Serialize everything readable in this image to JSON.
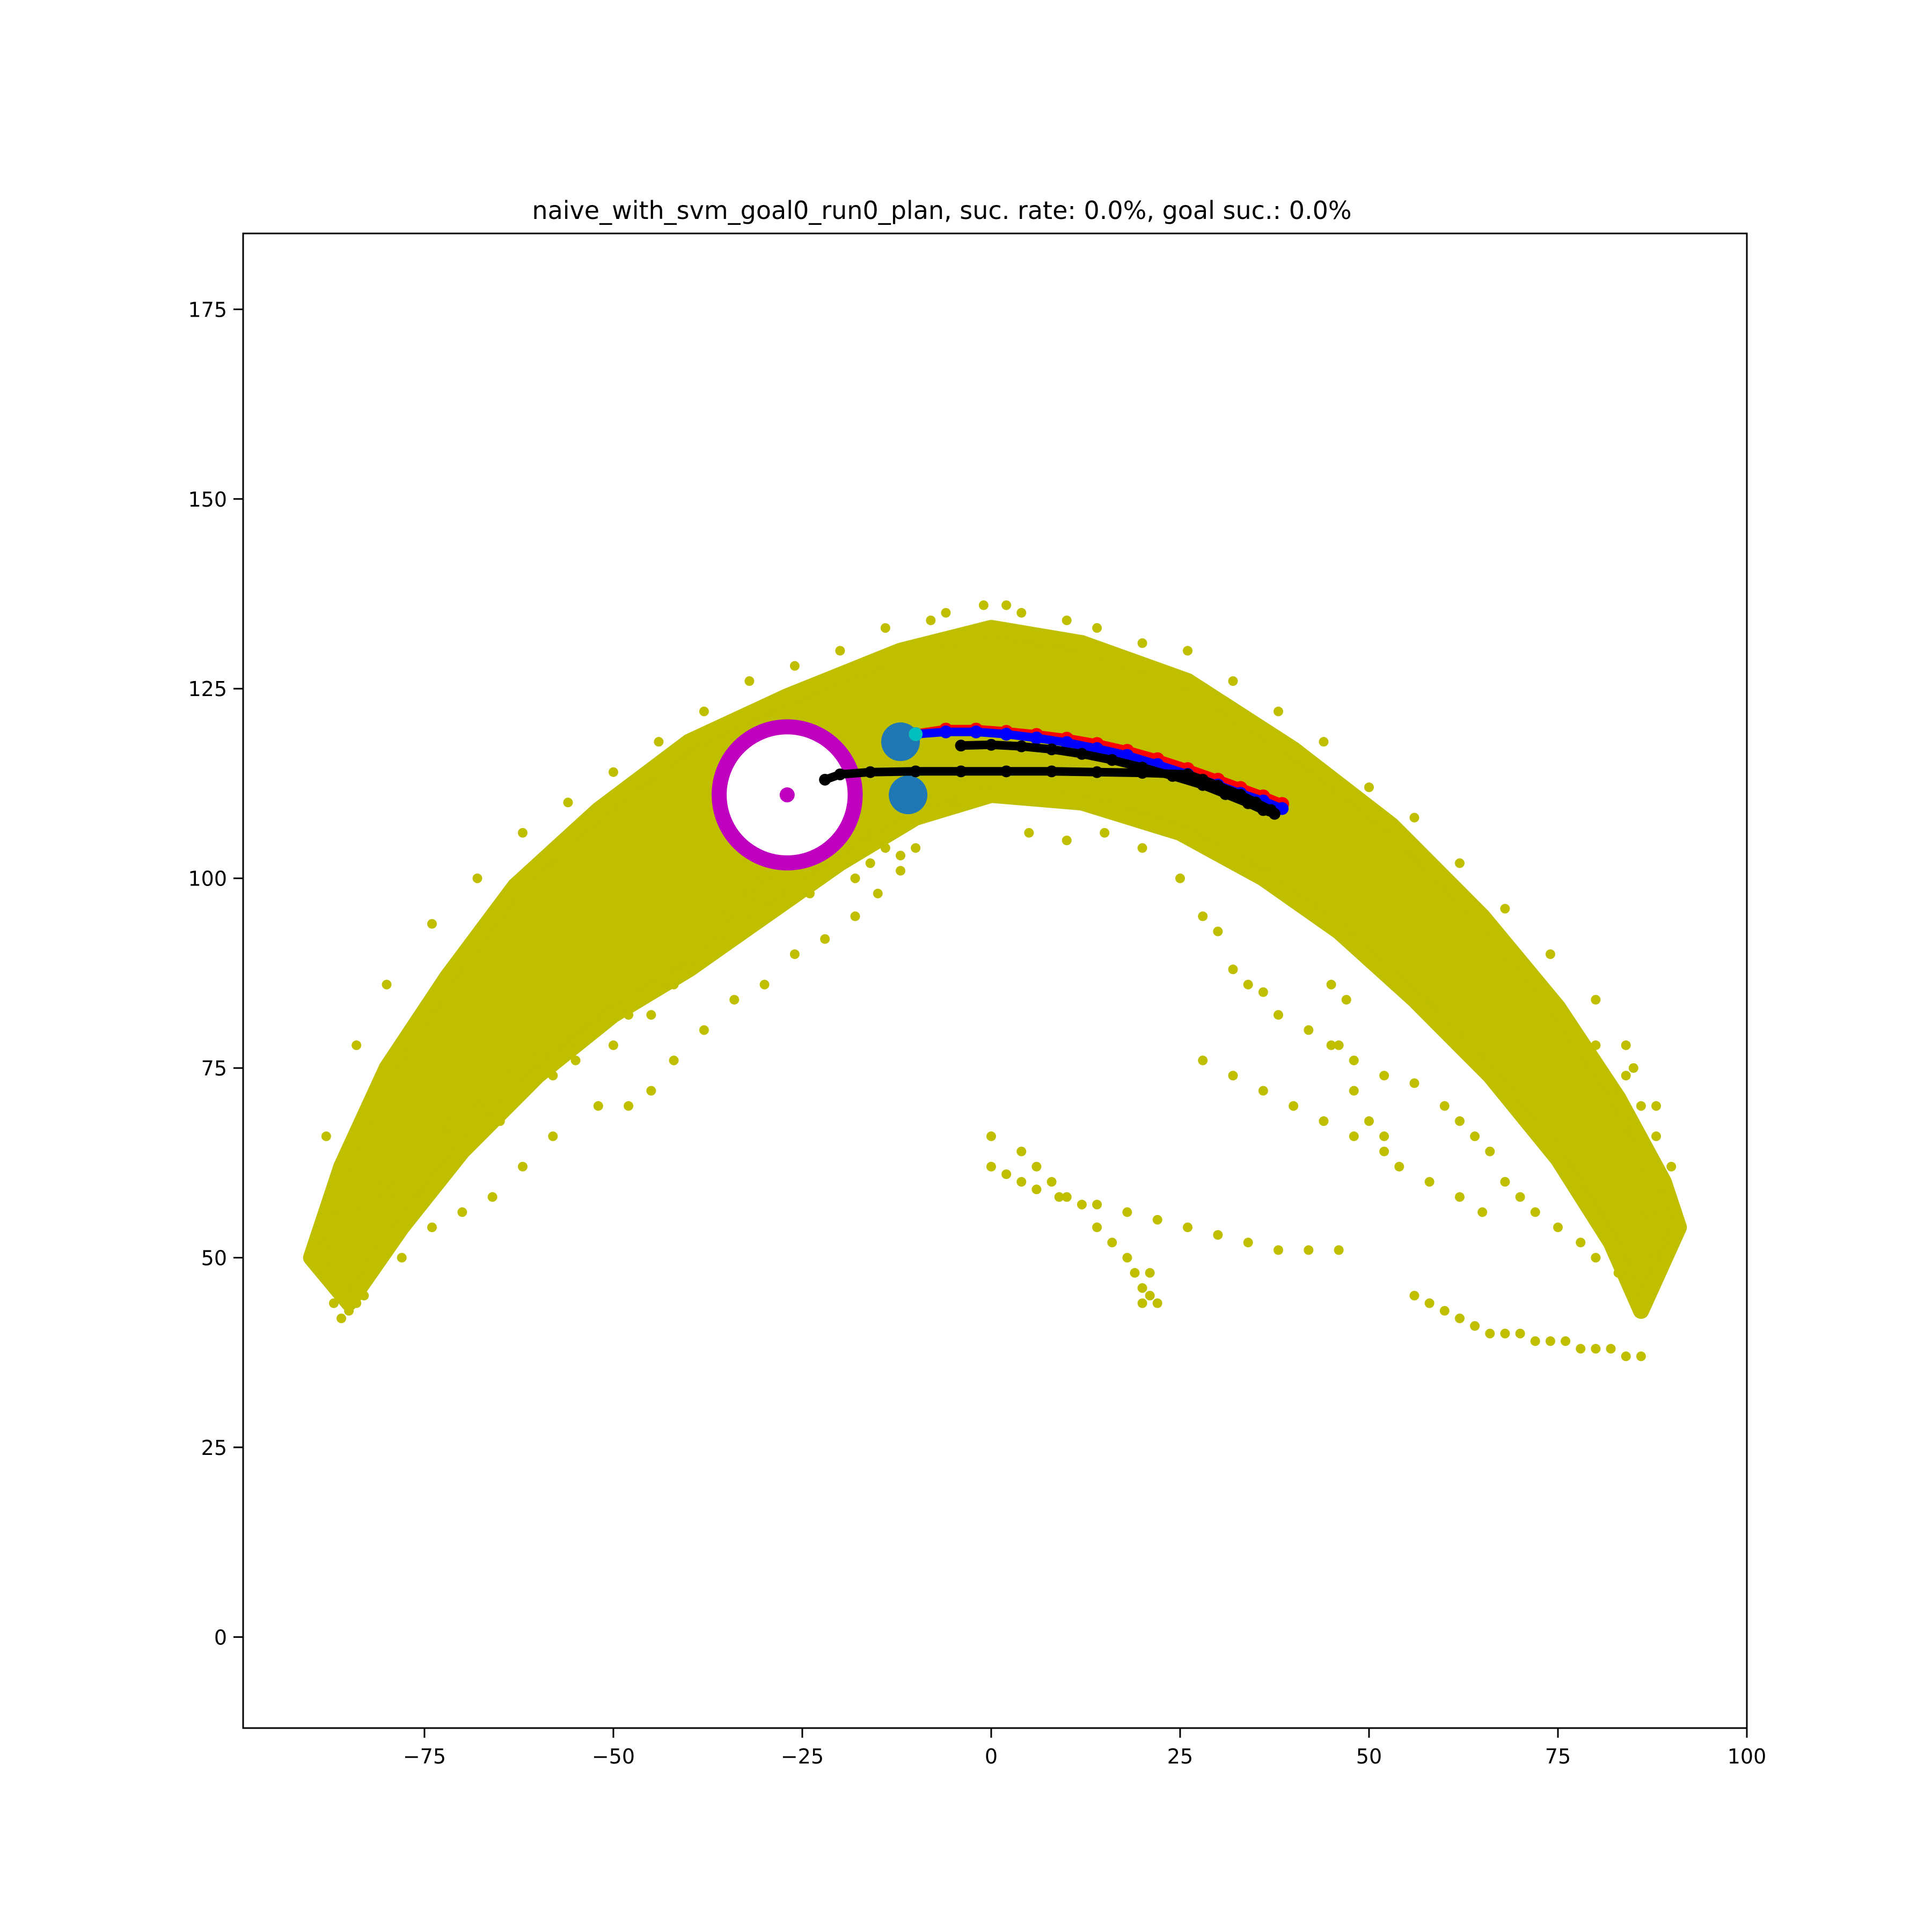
{
  "chart_data": {
    "type": "scatter",
    "title": "naive_with_svm_goal0_run0_plan, suc. rate: 0.0%, goal suc.: 0.0%",
    "xlabel": "",
    "ylabel": "",
    "xlim": [
      -99,
      100
    ],
    "ylim": [
      -12,
      185
    ],
    "xticks": [
      -75,
      -50,
      -25,
      0,
      25,
      50,
      75,
      100
    ],
    "yticks": [
      0,
      25,
      50,
      75,
      100,
      125,
      150,
      175
    ],
    "grid": false,
    "colors": {
      "cloud": "#bfbf00",
      "goal_ring": "#bf00bf",
      "goal_center": "#bf00bf",
      "marker": "#1f77b4",
      "red_path": "#ff0000",
      "blue_path": "#0000ff",
      "black_path": "#000000",
      "cyan_start": "#00bfbf"
    },
    "reachable_band": {
      "outer_edge": [
        [
          -90,
          50
        ],
        [
          -86,
          62
        ],
        [
          -80,
          75
        ],
        [
          -72,
          87
        ],
        [
          -63,
          99
        ],
        [
          -52,
          109
        ],
        [
          -40,
          118
        ],
        [
          -27,
          124
        ],
        [
          -12,
          130
        ],
        [
          0,
          133
        ],
        [
          12,
          131
        ],
        [
          26,
          126
        ],
        [
          40,
          117
        ],
        [
          53,
          107
        ],
        [
          65,
          95
        ],
        [
          75,
          83
        ],
        [
          83,
          71
        ],
        [
          89,
          60
        ],
        [
          91,
          54
        ]
      ],
      "inner_edge": [
        [
          86,
          43
        ],
        [
          82,
          52
        ],
        [
          75,
          63
        ],
        [
          66,
          74
        ],
        [
          56,
          84
        ],
        [
          46,
          93
        ],
        [
          36,
          100
        ],
        [
          25,
          106
        ],
        [
          12,
          110
        ],
        [
          0,
          111
        ],
        [
          -10,
          108
        ],
        [
          -20,
          102
        ],
        [
          -30,
          95
        ],
        [
          -40,
          88
        ],
        [
          -50,
          82
        ],
        [
          -60,
          74
        ],
        [
          -70,
          64
        ],
        [
          -78,
          54
        ],
        [
          -85,
          44
        ]
      ],
      "scatter_points": [
        [
          -86,
          42
        ],
        [
          -84,
          44
        ],
        [
          -88,
          48
        ],
        [
          -80,
          58
        ],
        [
          -76,
          60
        ],
        [
          -72,
          66
        ],
        [
          -65,
          68
        ],
        [
          -58,
          74
        ],
        [
          -55,
          76
        ],
        [
          -50,
          78
        ],
        [
          -45,
          82
        ],
        [
          -42,
          86
        ],
        [
          -40,
          92
        ],
        [
          -35,
          95
        ],
        [
          -32,
          98
        ],
        [
          -30,
          100
        ],
        [
          -28,
          102
        ],
        [
          -25,
          103
        ],
        [
          -22,
          104
        ],
        [
          -20,
          105
        ],
        [
          -16,
          106
        ],
        [
          -14,
          104
        ],
        [
          -12,
          101
        ],
        [
          -15,
          98
        ],
        [
          -18,
          95
        ],
        [
          -22,
          92
        ],
        [
          -26,
          90
        ],
        [
          -30,
          86
        ],
        [
          -34,
          84
        ],
        [
          -38,
          80
        ],
        [
          -42,
          76
        ],
        [
          -45,
          72
        ],
        [
          -48,
          70
        ],
        [
          -52,
          70
        ],
        [
          -58,
          66
        ],
        [
          -62,
          62
        ],
        [
          -66,
          58
        ],
        [
          -70,
          56
        ],
        [
          -74,
          54
        ],
        [
          -78,
          50
        ],
        [
          -82,
          48
        ],
        [
          -20,
          108
        ],
        [
          -10,
          108
        ],
        [
          -5,
          110
        ],
        [
          5,
          106
        ],
        [
          10,
          105
        ],
        [
          15,
          106
        ],
        [
          20,
          104
        ],
        [
          25,
          100
        ],
        [
          28,
          95
        ],
        [
          30,
          93
        ],
        [
          32,
          88
        ],
        [
          34,
          86
        ],
        [
          36,
          85
        ],
        [
          38,
          82
        ],
        [
          42,
          80
        ],
        [
          45,
          78
        ],
        [
          48,
          76
        ],
        [
          52,
          74
        ],
        [
          56,
          73
        ],
        [
          60,
          70
        ],
        [
          62,
          68
        ],
        [
          64,
          66
        ],
        [
          66,
          64
        ],
        [
          68,
          60
        ],
        [
          70,
          58
        ],
        [
          72,
          56
        ],
        [
          75,
          54
        ],
        [
          78,
          52
        ],
        [
          80,
          50
        ],
        [
          83,
          48
        ],
        [
          85,
          45
        ],
        [
          88,
          50
        ],
        [
          87,
          56
        ],
        [
          86,
          62
        ],
        [
          84,
          68
        ],
        [
          82,
          72
        ],
        [
          80,
          78
        ],
        [
          85,
          75
        ],
        [
          89,
          58
        ],
        [
          90,
          62
        ],
        [
          88,
          66
        ],
        [
          86,
          70
        ],
        [
          84,
          74
        ],
        [
          28,
          76
        ],
        [
          32,
          74
        ],
        [
          36,
          72
        ],
        [
          40,
          70
        ],
        [
          44,
          68
        ],
        [
          48,
          66
        ],
        [
          52,
          64
        ],
        [
          54,
          62
        ],
        [
          58,
          60
        ],
        [
          62,
          58
        ],
        [
          65,
          56
        ],
        [
          47,
          84
        ],
        [
          45,
          86
        ],
        [
          46,
          78
        ],
        [
          48,
          72
        ],
        [
          50,
          68
        ],
        [
          52,
          66
        ],
        [
          0,
          66
        ],
        [
          4,
          64
        ],
        [
          6,
          62
        ],
        [
          8,
          60
        ],
        [
          10,
          58
        ],
        [
          14,
          57
        ],
        [
          18,
          56
        ],
        [
          22,
          55
        ],
        [
          26,
          54
        ],
        [
          30,
          53
        ],
        [
          34,
          52
        ],
        [
          38,
          51
        ],
        [
          42,
          51
        ],
        [
          46,
          51
        ],
        [
          0,
          62
        ],
        [
          2,
          61
        ],
        [
          4,
          60
        ],
        [
          6,
          59
        ],
        [
          9,
          58
        ],
        [
          12,
          57
        ],
        [
          14,
          54
        ],
        [
          16,
          52
        ],
        [
          18,
          50
        ],
        [
          19,
          48
        ],
        [
          20,
          46
        ],
        [
          21,
          45
        ],
        [
          22,
          44
        ],
        [
          20,
          44
        ],
        [
          21,
          48
        ],
        [
          56,
          45
        ],
        [
          58,
          44
        ],
        [
          60,
          43
        ],
        [
          62,
          42
        ],
        [
          64,
          41
        ],
        [
          66,
          40
        ],
        [
          68,
          40
        ],
        [
          70,
          40
        ],
        [
          72,
          39
        ],
        [
          74,
          39
        ],
        [
          76,
          39
        ],
        [
          78,
          38
        ],
        [
          80,
          38
        ],
        [
          82,
          38
        ],
        [
          84,
          37
        ],
        [
          86,
          37
        ],
        [
          -10,
          104
        ],
        [
          -12,
          103
        ],
        [
          -16,
          102
        ],
        [
          -18,
          100
        ],
        [
          -24,
          98
        ],
        [
          -28,
          96
        ],
        [
          -36,
          92
        ],
        [
          -40,
          88
        ],
        [
          -44,
          86
        ],
        [
          -48,
          82
        ],
        [
          -52,
          80
        ],
        [
          -56,
          78
        ],
        [
          -60,
          76
        ],
        [
          -64,
          74
        ],
        [
          -68,
          70
        ],
        [
          -72,
          68
        ],
        [
          -76,
          64
        ],
        [
          -80,
          60
        ],
        [
          -84,
          56
        ],
        [
          -88,
          52
        ],
        [
          -87,
          44
        ],
        [
          -85,
          43
        ],
        [
          -83,
          45
        ],
        [
          -1,
          136
        ],
        [
          2,
          136
        ],
        [
          4,
          135
        ],
        [
          -6,
          135
        ],
        [
          -8,
          134
        ],
        [
          10,
          134
        ],
        [
          14,
          133
        ],
        [
          20,
          131
        ],
        [
          -14,
          133
        ],
        [
          -20,
          130
        ],
        [
          -26,
          128
        ],
        [
          -32,
          126
        ],
        [
          -38,
          122
        ],
        [
          -44,
          118
        ],
        [
          -50,
          114
        ],
        [
          -56,
          110
        ],
        [
          -62,
          106
        ],
        [
          -68,
          100
        ],
        [
          -74,
          94
        ],
        [
          -80,
          86
        ],
        [
          -84,
          78
        ],
        [
          -88,
          66
        ],
        [
          26,
          130
        ],
        [
          32,
          126
        ],
        [
          38,
          122
        ],
        [
          44,
          118
        ],
        [
          50,
          112
        ],
        [
          56,
          108
        ],
        [
          62,
          102
        ],
        [
          68,
          96
        ],
        [
          74,
          90
        ],
        [
          80,
          84
        ],
        [
          84,
          78
        ],
        [
          88,
          70
        ],
        [
          90,
          56
        ],
        [
          89,
          52
        ]
      ]
    },
    "goal": {
      "x": -27,
      "y": 111,
      "radius": 9
    },
    "markers": [
      {
        "x": -12,
        "y": 118
      },
      {
        "x": -11,
        "y": 111
      }
    ],
    "start": {
      "x": -10,
      "y": 119
    },
    "red_path": [
      [
        -10,
        119
      ],
      [
        -6,
        119.6
      ],
      [
        -2,
        119.6
      ],
      [
        2,
        119.3
      ],
      [
        6,
        118.9
      ],
      [
        10,
        118.4
      ],
      [
        14,
        117.7
      ],
      [
        18,
        116.8
      ],
      [
        22,
        115.7
      ],
      [
        26,
        114.4
      ],
      [
        30,
        113.0
      ],
      [
        33,
        111.9
      ],
      [
        36,
        110.8
      ],
      [
        38.5,
        109.8
      ]
    ],
    "blue_path": [
      [
        -10,
        119
      ],
      [
        -6,
        119.3
      ],
      [
        -2,
        119.3
      ],
      [
        2,
        119.0
      ],
      [
        6,
        118.5
      ],
      [
        10,
        117.9
      ],
      [
        14,
        117.1
      ],
      [
        18,
        116.2
      ],
      [
        22,
        115.0
      ],
      [
        26,
        113.7
      ],
      [
        30,
        112.3
      ],
      [
        33,
        111.2
      ],
      [
        36,
        110.2
      ],
      [
        38.5,
        109.2
      ]
    ],
    "black_path_upper": [
      [
        -4,
        117.5
      ],
      [
        0,
        117.6
      ],
      [
        4,
        117.4
      ],
      [
        8,
        117.0
      ],
      [
        12,
        116.4
      ],
      [
        16,
        115.6
      ],
      [
        20,
        114.6
      ],
      [
        24,
        113.5
      ],
      [
        28,
        112.3
      ],
      [
        31,
        111.1
      ],
      [
        34,
        109.9
      ],
      [
        36,
        109.0
      ],
      [
        37.5,
        108.5
      ]
    ],
    "black_path_lower": [
      [
        -22,
        113
      ],
      [
        -20,
        113.7
      ],
      [
        -16,
        114.0
      ],
      [
        -10,
        114.1
      ],
      [
        -4,
        114.1
      ],
      [
        2,
        114.1
      ],
      [
        8,
        114.1
      ],
      [
        14,
        114.0
      ],
      [
        20,
        113.9
      ],
      [
        26,
        113.7
      ],
      [
        28,
        113.0
      ],
      [
        30,
        112.2
      ],
      [
        33,
        111.0
      ],
      [
        35,
        110.0
      ],
      [
        37,
        109.0
      ]
    ]
  }
}
